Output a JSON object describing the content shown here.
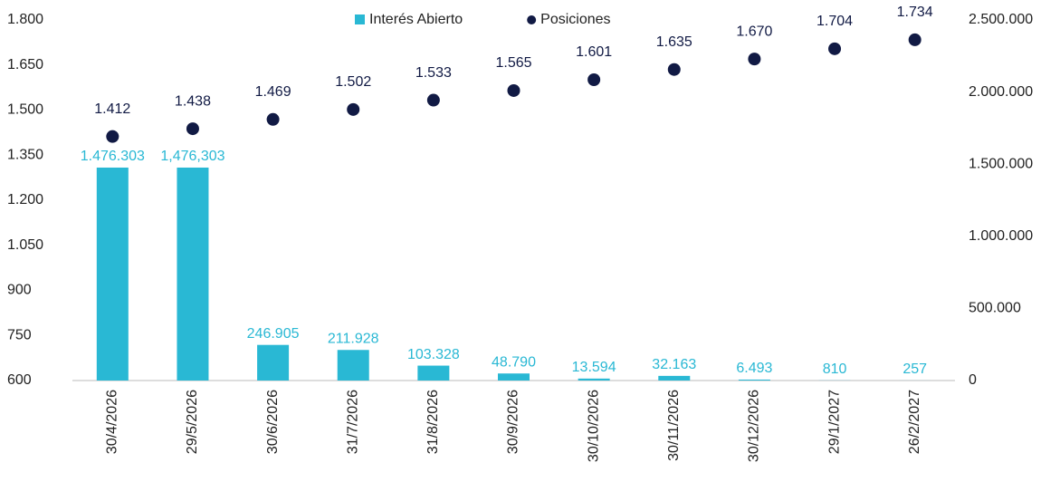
{
  "chart_data": {
    "type": "combo",
    "categories": [
      "30/4/2026",
      "29/5/2026",
      "30/6/2026",
      "31/7/2026",
      "31/8/2026",
      "30/9/2026",
      "30/10/2026",
      "30/11/2026",
      "30/12/2026",
      "29/1/2027",
      "26/2/2027"
    ],
    "series": [
      {
        "name": "Interés Abierto",
        "type": "bar",
        "axis": "y2",
        "color": "#29b8d4",
        "values": [
          1476303,
          1476303,
          246905,
          211928,
          103328,
          48790,
          13594,
          32163,
          6493,
          810,
          257
        ],
        "value_labels": [
          "1.476.303",
          "1,476,303",
          "246.905",
          "211.928",
          "103.328",
          "48.790",
          "13.594",
          "32.163",
          "6.493",
          "810",
          "257"
        ]
      },
      {
        "name": "Posiciones",
        "type": "scatter",
        "color": "#111a44",
        "values": [
          1412,
          1438,
          1469,
          1502,
          1533,
          1565,
          1601,
          1635,
          1670,
          1704,
          1734
        ],
        "value_labels": [
          "1.412",
          "1.438",
          "1.469",
          "1.502",
          "1.533",
          "1.565",
          "1.601",
          "1.635",
          "1.670",
          "1.704",
          "1.734"
        ]
      }
    ],
    "ylim": [
      600,
      1800
    ],
    "yticks": [
      600,
      750,
      900,
      {
        "value": 1050,
        "label": "1.050"
      },
      {
        "value": 1200,
        "label": "1.200"
      },
      {
        "value": 1350,
        "label": "1.350"
      },
      {
        "value": 1500,
        "label": "1.500"
      },
      {
        "value": 1650,
        "label": "1.650"
      },
      {
        "value": 1800,
        "label": "1.800"
      }
    ],
    "y2lim": [
      0,
      2500000
    ],
    "y2ticks": [
      0,
      {
        "value": 500000,
        "label": "500.000"
      },
      {
        "value": 1000000,
        "label": "1.000.000"
      },
      {
        "value": 1500000,
        "label": "1.500.000"
      },
      {
        "value": 2000000,
        "label": "2.000.000"
      },
      {
        "value": 2500000,
        "label": "2.500.000"
      }
    ],
    "legend": "top"
  }
}
